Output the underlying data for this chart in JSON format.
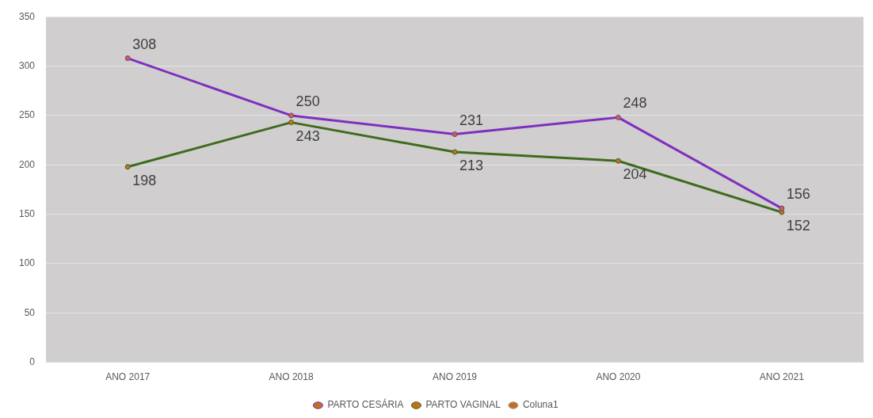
{
  "chart_data": {
    "type": "line",
    "categories": [
      "ANO 2017",
      "ANO 2018",
      "ANO 2019",
      "ANO 2020",
      "ANO 2021"
    ],
    "series": [
      {
        "name": "PARTO CESÁRIA",
        "color": "#7f2fc0",
        "values": [
          308,
          250,
          231,
          248,
          156
        ]
      },
      {
        "name": "PARTO VAGINAL",
        "color": "#3e6b1e",
        "values": [
          198,
          243,
          213,
          204,
          152
        ]
      },
      {
        "name": "Coluna1",
        "color": "#a6a6a6",
        "values": [
          null,
          null,
          null,
          null,
          null
        ]
      }
    ],
    "ylim": [
      0,
      350
    ],
    "yticks": [
      0,
      50,
      100,
      150,
      200,
      250,
      300,
      350
    ],
    "grid": "y",
    "legend": "bottom",
    "marker": "circle",
    "line_style": "solid",
    "data_labels": true
  }
}
